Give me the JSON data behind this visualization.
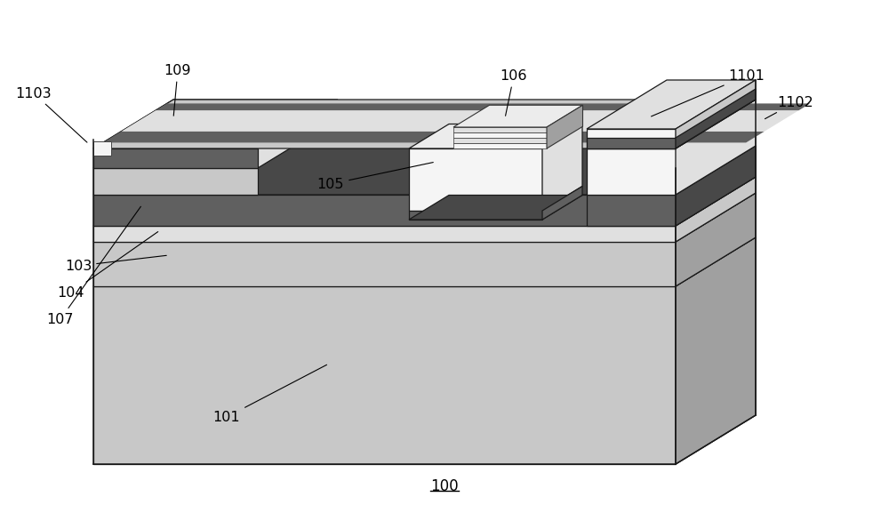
{
  "bg": "#ffffff",
  "CL": "#c8c8c8",
  "CLT": "#d8d8d8",
  "CM": "#a0a0a0",
  "CD": "#606060",
  "CDD": "#484848",
  "CVL": "#e0e0e0",
  "CW": "#f5f5f5",
  "CWT": "#ececec",
  "note_fs": 11.5
}
